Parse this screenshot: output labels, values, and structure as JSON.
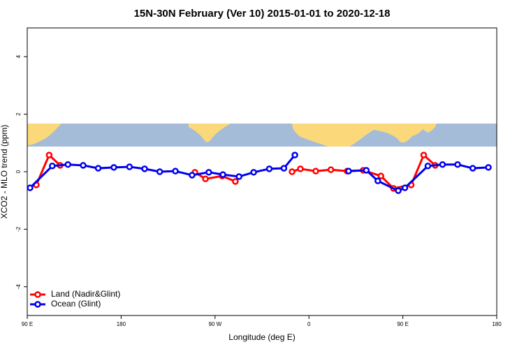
{
  "chart_data": {
    "type": "line",
    "title": "15N-30N February (Ver 10)   2015-01-01 to 2020-12-18",
    "x_label": "Longitude (deg E)",
    "y_label": "XCO2 - MLO trend (ppm)",
    "xlim": [
      90,
      540
    ],
    "xticks": [
      {
        "value": 90,
        "label": "90 E"
      },
      180,
      {
        "value": 270,
        "label": "90 W"
      },
      {
        "value": 360,
        "label": "0"
      },
      {
        "value": 450,
        "label": "90 E"
      },
      {
        "value": 540,
        "label": "180"
      }
    ],
    "ylim": [
      -5,
      5
    ],
    "yticks": [
      -4,
      -2,
      0,
      2,
      4
    ],
    "legend": "bottom-left",
    "series": [
      {
        "name": "Land (Nadir&Glint)",
        "color": "#ff0000",
        "x": [
          98.7,
          111,
          121.5,
          null,
          250.7,
          260.8,
          276.8,
          289.5,
          null,
          343.8,
          351.8,
          366.5,
          381,
          396.6,
          412,
          429,
          441,
          458,
          470,
          481
        ],
        "values": [
          -0.46,
          0.58,
          0.22,
          null,
          -0.02,
          -0.25,
          -0.15,
          -0.34,
          null,
          0.0,
          0.1,
          0.02,
          0.07,
          0.02,
          0.05,
          -0.15,
          -0.58,
          -0.46,
          0.58,
          0.22
        ]
      },
      {
        "name": "Ocean (Glint)",
        "color": "#0000ee",
        "x": [
          92.7,
          114,
          129,
          143.6,
          158,
          173,
          188,
          202.5,
          217,
          232,
          248,
          264,
          277.5,
          293,
          307,
          322,
          336,
          346.5,
          null,
          398,
          415,
          426,
          445.6,
          452,
          474,
          488,
          502.5,
          517,
          532
        ],
        "values": [
          -0.56,
          0.2,
          0.25,
          0.22,
          0.12,
          0.15,
          0.17,
          0.1,
          0.0,
          0.02,
          -0.12,
          -0.02,
          -0.1,
          -0.17,
          -0.02,
          0.1,
          0.12,
          0.58,
          null,
          0.02,
          0.05,
          -0.32,
          -0.66,
          -0.56,
          0.2,
          0.25,
          0.25,
          0.12,
          0.15
        ]
      }
    ]
  }
}
